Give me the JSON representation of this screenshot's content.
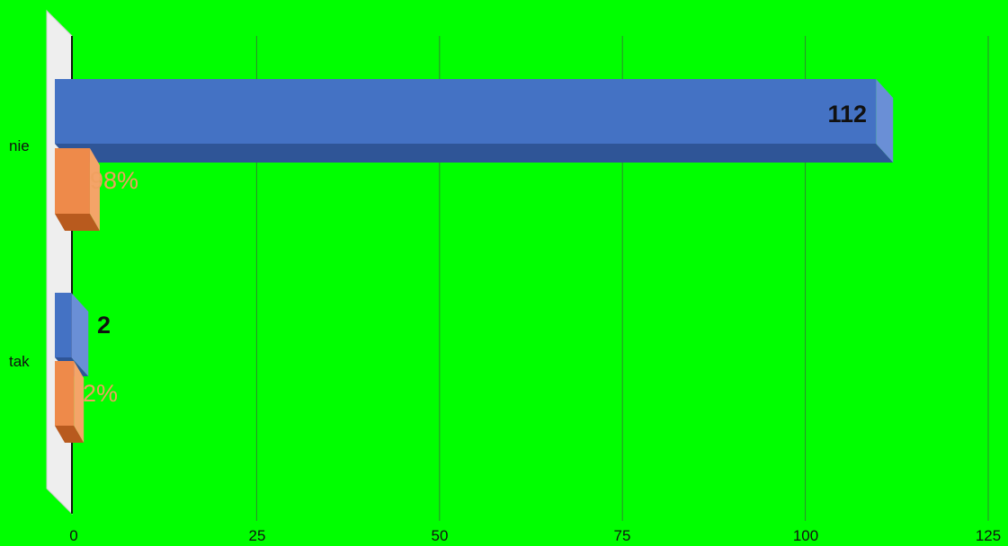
{
  "chart_data": {
    "type": "bar",
    "orientation": "horizontal",
    "style": "3d",
    "categories": [
      "nie",
      "tak"
    ],
    "series": [
      {
        "values": [
          112,
          2
        ],
        "labels": [
          "112",
          "2"
        ],
        "color": "#4472c4"
      },
      {
        "values": [
          0.98,
          0.02
        ],
        "labels": [
          "98%",
          "2%"
        ],
        "color": "#ed7d31"
      }
    ],
    "x_ticks": [
      "0",
      "25",
      "50",
      "75",
      "100",
      "125"
    ],
    "xlim": [
      0,
      125
    ],
    "grid": "vertical",
    "legend": "none",
    "title": "",
    "xlabel": "",
    "ylabel": ""
  },
  "colors": {
    "background": "#00ff00",
    "gridline": "#2e8b2e",
    "blue_front": "#4472c4",
    "orange_front": "#ed7d31",
    "pct_text": "#f0a060"
  }
}
